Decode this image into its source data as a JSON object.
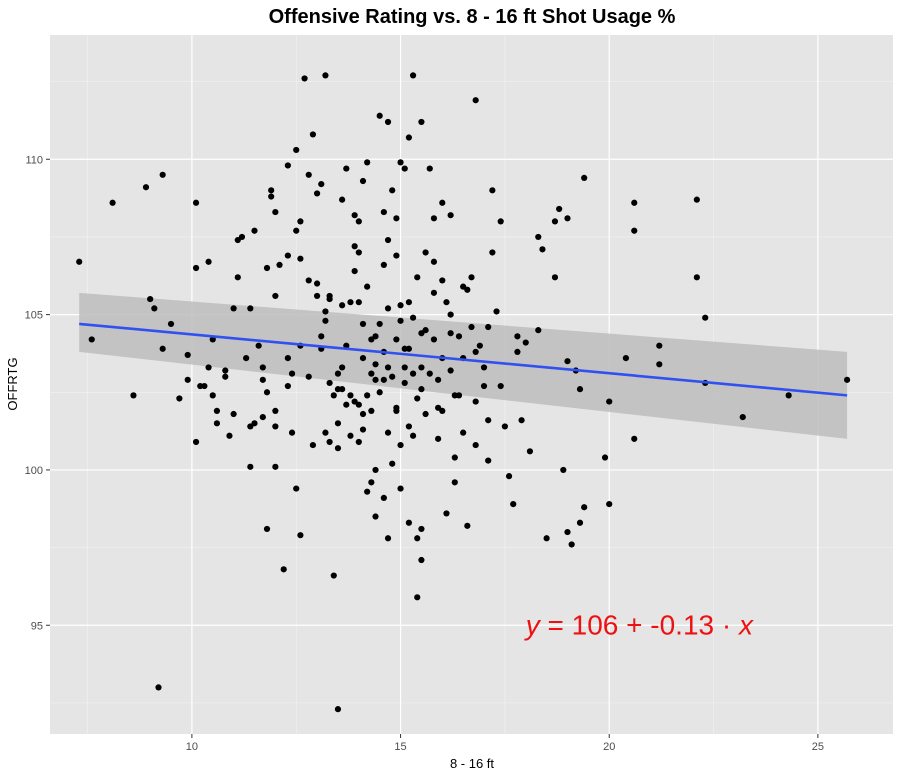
{
  "chart_data": {
    "type": "scatter",
    "title": "Offensive Rating vs. 8 - 16 ft  Shot Usage %",
    "xlabel": "8 - 16 ft",
    "ylabel": "OFFRTG",
    "xlim": [
      6.6,
      26.8
    ],
    "ylim": [
      91.5,
      114.0
    ],
    "x_ticks": [
      10,
      15,
      20,
      25
    ],
    "y_ticks": [
      95,
      100,
      105,
      110
    ],
    "x_tick_labels": [
      "10",
      "15",
      "20",
      "25"
    ],
    "y_tick_labels": [
      "95",
      "100",
      "105",
      "110"
    ],
    "grid": true,
    "background": "#e5e5e5",
    "point_color": "#000000",
    "fit_line": {
      "x_start": 7.3,
      "x_end": 25.7,
      "y_start": 104.7,
      "y_end": 102.4,
      "color": "#3050f0",
      "band_lower": [
        103.8,
        101.0
      ],
      "band_upper": [
        105.7,
        103.8
      ],
      "band_color": "#bdbdbd"
    },
    "annotation": {
      "x": 18.0,
      "y": 94.7,
      "y_var": "y",
      "middle": " = 106 + -0.13 · ",
      "x_var": "x",
      "color": "#ee1111"
    },
    "points": [
      [
        7.3,
        106.7
      ],
      [
        7.6,
        104.2
      ],
      [
        8.1,
        108.6
      ],
      [
        8.6,
        102.4
      ],
      [
        8.9,
        109.1
      ],
      [
        9.0,
        105.5
      ],
      [
        9.1,
        105.2
      ],
      [
        9.3,
        103.9
      ],
      [
        9.3,
        109.5
      ],
      [
        9.5,
        104.7
      ],
      [
        9.7,
        102.3
      ],
      [
        9.9,
        102.9
      ],
      [
        9.9,
        103.7
      ],
      [
        10.1,
        106.5
      ],
      [
        10.1,
        108.6
      ],
      [
        10.1,
        100.9
      ],
      [
        10.2,
        102.7
      ],
      [
        10.3,
        102.7
      ],
      [
        10.4,
        106.7
      ],
      [
        10.4,
        103.3
      ],
      [
        10.5,
        102.4
      ],
      [
        10.6,
        101.5
      ],
      [
        10.6,
        101.9
      ],
      [
        10.8,
        103.2
      ],
      [
        10.8,
        103.0
      ],
      [
        10.9,
        101.1
      ],
      [
        11.0,
        101.8
      ],
      [
        11.0,
        105.2
      ],
      [
        11.1,
        106.2
      ],
      [
        11.1,
        107.4
      ],
      [
        11.2,
        107.5
      ],
      [
        11.3,
        103.6
      ],
      [
        11.4,
        100.1
      ],
      [
        11.4,
        101.4
      ],
      [
        11.4,
        105.2
      ],
      [
        11.5,
        101.5
      ],
      [
        11.5,
        107.7
      ],
      [
        11.7,
        101.7
      ],
      [
        11.7,
        102.9
      ],
      [
        11.7,
        103.3
      ],
      [
        11.8,
        102.5
      ],
      [
        11.8,
        98.1
      ],
      [
        11.8,
        106.5
      ],
      [
        11.9,
        109.0
      ],
      [
        11.9,
        108.8
      ],
      [
        12.0,
        108.3
      ],
      [
        12.0,
        101.9
      ],
      [
        12.0,
        105.6
      ],
      [
        12.0,
        100.1
      ],
      [
        12.1,
        106.6
      ],
      [
        12.2,
        96.8
      ],
      [
        12.3,
        109.8
      ],
      [
        12.3,
        103.6
      ],
      [
        12.3,
        102.7
      ],
      [
        12.4,
        101.2
      ],
      [
        12.4,
        103.1
      ],
      [
        12.5,
        107.7
      ],
      [
        12.5,
        110.3
      ],
      [
        12.6,
        106.8
      ],
      [
        12.6,
        104.0
      ],
      [
        12.7,
        112.6
      ],
      [
        12.8,
        109.5
      ],
      [
        12.8,
        106.1
      ],
      [
        12.9,
        100.8
      ],
      [
        12.9,
        110.8
      ],
      [
        13.0,
        108.9
      ],
      [
        13.0,
        106.0
      ],
      [
        13.1,
        104.3
      ],
      [
        13.1,
        103.9
      ],
      [
        13.1,
        109.2
      ],
      [
        13.2,
        105.1
      ],
      [
        13.2,
        101.2
      ],
      [
        13.3,
        102.8
      ],
      [
        13.3,
        105.6
      ],
      [
        13.3,
        105.5
      ],
      [
        13.4,
        102.4
      ],
      [
        13.4,
        96.6
      ],
      [
        13.5,
        100.7
      ],
      [
        13.5,
        101.5
      ],
      [
        13.5,
        102.6
      ],
      [
        13.6,
        103.3
      ],
      [
        13.6,
        102.6
      ],
      [
        13.6,
        105.3
      ],
      [
        13.6,
        108.7
      ],
      [
        13.7,
        109.7
      ],
      [
        13.7,
        102.1
      ],
      [
        13.7,
        104.0
      ],
      [
        13.8,
        101.1
      ],
      [
        13.8,
        105.4
      ],
      [
        13.8,
        102.4
      ],
      [
        13.9,
        106.4
      ],
      [
        13.9,
        108.2
      ],
      [
        13.9,
        102.2
      ],
      [
        14.0,
        100.9
      ],
      [
        14.0,
        102.1
      ],
      [
        14.0,
        107.0
      ],
      [
        14.0,
        105.4
      ],
      [
        14.1,
        109.3
      ],
      [
        14.1,
        104.7
      ],
      [
        14.1,
        103.6
      ],
      [
        14.1,
        101.8
      ],
      [
        14.2,
        109.9
      ],
      [
        14.2,
        102.4
      ],
      [
        14.2,
        105.9
      ],
      [
        14.3,
        103.1
      ],
      [
        14.3,
        101.9
      ],
      [
        14.3,
        99.6
      ],
      [
        14.4,
        104.3
      ],
      [
        14.4,
        103.4
      ],
      [
        14.4,
        102.9
      ],
      [
        14.4,
        100.0
      ],
      [
        14.4,
        98.5
      ],
      [
        14.5,
        111.4
      ],
      [
        14.5,
        104.7
      ],
      [
        14.5,
        102.5
      ],
      [
        14.6,
        108.3
      ],
      [
        14.6,
        103.8
      ],
      [
        14.6,
        102.9
      ],
      [
        14.6,
        99.1
      ],
      [
        14.7,
        107.4
      ],
      [
        14.7,
        105.2
      ],
      [
        14.7,
        103.3
      ],
      [
        14.7,
        101.2
      ],
      [
        14.7,
        97.8
      ],
      [
        14.8,
        109.0
      ],
      [
        14.8,
        103.0
      ],
      [
        14.8,
        100.2
      ],
      [
        14.9,
        104.2
      ],
      [
        14.9,
        106.9
      ],
      [
        14.9,
        108.1
      ],
      [
        15.0,
        105.3
      ],
      [
        15.0,
        104.8
      ],
      [
        15.0,
        100.8
      ],
      [
        15.1,
        109.7
      ],
      [
        15.1,
        103.3
      ],
      [
        15.1,
        102.8
      ],
      [
        15.2,
        98.3
      ],
      [
        15.2,
        101.4
      ],
      [
        15.2,
        103.9
      ],
      [
        15.3,
        104.9
      ],
      [
        15.3,
        103.1
      ],
      [
        15.3,
        101.1
      ],
      [
        15.4,
        97.8
      ],
      [
        15.4,
        102.3
      ],
      [
        15.4,
        106.2
      ],
      [
        15.5,
        104.4
      ],
      [
        15.5,
        103.3
      ],
      [
        15.5,
        102.6
      ],
      [
        15.5,
        98.1
      ],
      [
        15.6,
        107.0
      ],
      [
        15.6,
        104.5
      ],
      [
        15.6,
        101.8
      ],
      [
        15.7,
        109.7
      ],
      [
        15.7,
        103.1
      ],
      [
        15.8,
        108.1
      ],
      [
        15.8,
        105.7
      ],
      [
        15.9,
        102.9
      ],
      [
        15.9,
        101.0
      ],
      [
        16.0,
        106.1
      ],
      [
        16.0,
        103.6
      ],
      [
        16.0,
        101.9
      ],
      [
        16.1,
        98.6
      ],
      [
        16.2,
        108.2
      ],
      [
        16.2,
        105.0
      ],
      [
        16.2,
        103.2
      ],
      [
        16.3,
        102.4
      ],
      [
        16.3,
        99.6
      ],
      [
        16.4,
        104.3
      ],
      [
        16.4,
        102.4
      ],
      [
        16.5,
        105.9
      ],
      [
        16.5,
        103.6
      ],
      [
        16.5,
        101.2
      ],
      [
        16.6,
        98.2
      ],
      [
        16.7,
        106.2
      ],
      [
        16.7,
        104.6
      ],
      [
        16.8,
        103.8
      ],
      [
        16.8,
        100.8
      ],
      [
        16.9,
        104.0
      ],
      [
        17.0,
        103.3
      ],
      [
        17.1,
        101.6
      ],
      [
        17.1,
        100.3
      ],
      [
        17.1,
        104.6
      ],
      [
        17.2,
        109.0
      ],
      [
        17.2,
        107.0
      ],
      [
        17.3,
        105.1
      ],
      [
        17.4,
        108.0
      ],
      [
        17.4,
        102.7
      ],
      [
        17.5,
        101.4
      ],
      [
        17.6,
        99.8
      ],
      [
        17.7,
        98.9
      ],
      [
        17.8,
        104.3
      ],
      [
        17.8,
        103.8
      ],
      [
        17.9,
        101.6
      ],
      [
        18.0,
        104.1
      ],
      [
        18.1,
        100.6
      ],
      [
        18.3,
        104.5
      ],
      [
        18.3,
        107.5
      ],
      [
        18.4,
        107.1
      ],
      [
        18.5,
        97.8
      ],
      [
        18.7,
        106.2
      ],
      [
        18.7,
        108.0
      ],
      [
        18.8,
        108.4
      ],
      [
        18.9,
        100.0
      ],
      [
        19.0,
        103.5
      ],
      [
        19.0,
        98.0
      ],
      [
        19.0,
        108.1
      ],
      [
        19.1,
        97.6
      ],
      [
        19.2,
        103.2
      ],
      [
        19.3,
        98.3
      ],
      [
        19.3,
        102.6
      ],
      [
        19.4,
        109.4
      ],
      [
        19.4,
        98.8
      ],
      [
        19.9,
        100.4
      ],
      [
        20.0,
        102.2
      ],
      [
        20.0,
        98.9
      ],
      [
        20.4,
        103.6
      ],
      [
        20.6,
        108.6
      ],
      [
        20.6,
        107.7
      ],
      [
        20.6,
        101.0
      ],
      [
        21.2,
        104.0
      ],
      [
        21.2,
        103.4
      ],
      [
        22.1,
        108.7
      ],
      [
        22.1,
        106.2
      ],
      [
        22.3,
        104.9
      ],
      [
        22.3,
        102.8
      ],
      [
        23.2,
        101.7
      ],
      [
        24.3,
        102.4
      ],
      [
        25.7,
        102.9
      ],
      [
        9.2,
        93.0
      ],
      [
        13.5,
        92.3
      ],
      [
        15.4,
        95.9
      ],
      [
        15.5,
        97.1
      ],
      [
        13.2,
        112.7
      ],
      [
        15.3,
        112.7
      ],
      [
        16.8,
        111.9
      ],
      [
        15.5,
        111.2
      ],
      [
        14.7,
        111.2
      ],
      [
        15.2,
        110.7
      ],
      [
        15.0,
        109.9
      ],
      [
        12.6,
        108.0
      ],
      [
        16.0,
        108.6
      ],
      [
        14.0,
        108.0
      ],
      [
        13.9,
        107.2
      ],
      [
        15.8,
        106.7
      ],
      [
        14.6,
        106.6
      ],
      [
        16.6,
        105.8
      ],
      [
        15.2,
        105.4
      ],
      [
        13.0,
        105.6
      ],
      [
        14.3,
        104.2
      ],
      [
        15.8,
        104.2
      ],
      [
        12.8,
        103.0
      ],
      [
        14.9,
        102.0
      ],
      [
        13.3,
        100.9
      ],
      [
        12.0,
        101.4
      ],
      [
        14.2,
        99.3
      ],
      [
        15.0,
        99.4
      ],
      [
        16.3,
        100.4
      ],
      [
        12.5,
        99.4
      ],
      [
        12.6,
        97.9
      ],
      [
        14.9,
        101.9
      ],
      [
        16.8,
        102.2
      ],
      [
        17.0,
        102.7
      ],
      [
        15.9,
        102.0
      ],
      [
        13.2,
        104.8
      ],
      [
        12.3,
        106.9
      ],
      [
        11.6,
        104.0
      ],
      [
        10.5,
        104.2
      ],
      [
        16.1,
        105.4
      ],
      [
        16.2,
        104.4
      ],
      [
        15.1,
        103.9
      ],
      [
        14.1,
        101.3
      ],
      [
        13.5,
        103.1
      ]
    ]
  }
}
